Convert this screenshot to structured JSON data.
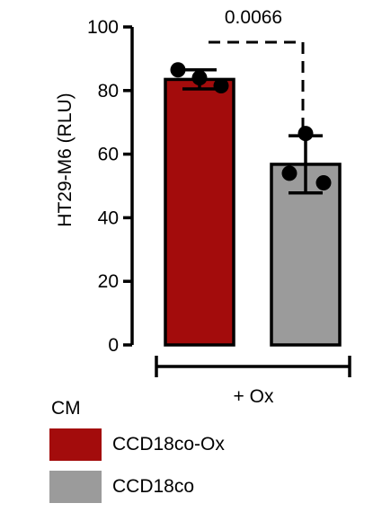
{
  "chart_data": {
    "type": "bar",
    "title": "",
    "xlabel": "",
    "ylabel": "HT29-M6 (RLU)",
    "ylim": [
      0,
      100
    ],
    "yticks": [
      0,
      20,
      40,
      60,
      80,
      100
    ],
    "categories": [
      "CCD18co-Ox",
      "CCD18co"
    ],
    "values": [
      83.5,
      56.8
    ],
    "errors": [
      3.0,
      9.0
    ],
    "points": [
      [
        86.5,
        84.0,
        81.5
      ],
      [
        66.5,
        54.0,
        51.0
      ]
    ],
    "group_label": "+ Ox",
    "comparison": {
      "label": "0.0066"
    },
    "legend": {
      "title": "CM",
      "items": [
        {
          "label": "CCD18co-Ox",
          "color": "#a30c0c"
        },
        {
          "label": "CCD18co",
          "color": "#9b9b9b"
        }
      ]
    },
    "colors": {
      "bar1": "#a30c0c",
      "bar2": "#9b9b9b",
      "outline": "#000000"
    },
    "grid": false
  }
}
